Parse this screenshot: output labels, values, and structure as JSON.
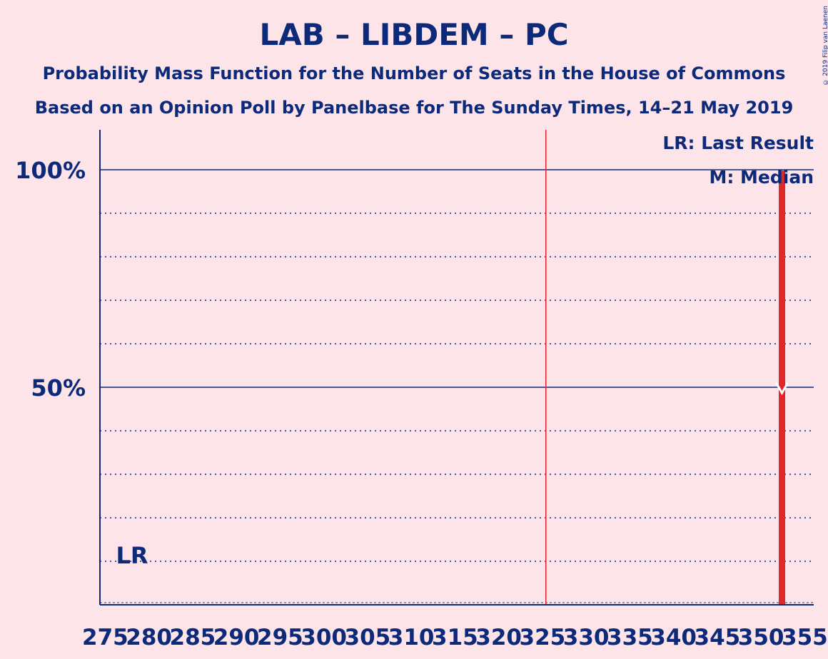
{
  "chart_data": {
    "type": "bar",
    "title": "LAB – LIBDEM – PC",
    "subtitle": "Probability Mass Function for the Number of Seats in the House of Commons",
    "subtitle2": "Based on an Opinion Poll by Panelbase for The Sunday Times, 14–21 May 2019",
    "copyright": "© 2019 Filip van Laenen",
    "legend": {
      "last_result": "LR: Last Result",
      "median": "M: Median",
      "placement": "top-right"
    },
    "lr_label": "LR",
    "yticks": [
      {
        "value": 50,
        "label": "50%"
      },
      {
        "value": 100,
        "label": "100%"
      }
    ],
    "ylim": [
      0,
      100
    ],
    "xlim": [
      275,
      355
    ],
    "xticks": [
      275,
      280,
      285,
      290,
      295,
      300,
      305,
      310,
      315,
      320,
      325,
      330,
      335,
      340,
      345,
      350,
      355
    ],
    "majority_line": 326,
    "last_result": 277,
    "median": 353,
    "bars": [
      {
        "seats": 353,
        "value": 99.8
      }
    ],
    "colors": {
      "bar": "#e0282a",
      "axis": "#0d2a7a",
      "majority": "#e0282a",
      "background": "#fde4e8"
    }
  }
}
